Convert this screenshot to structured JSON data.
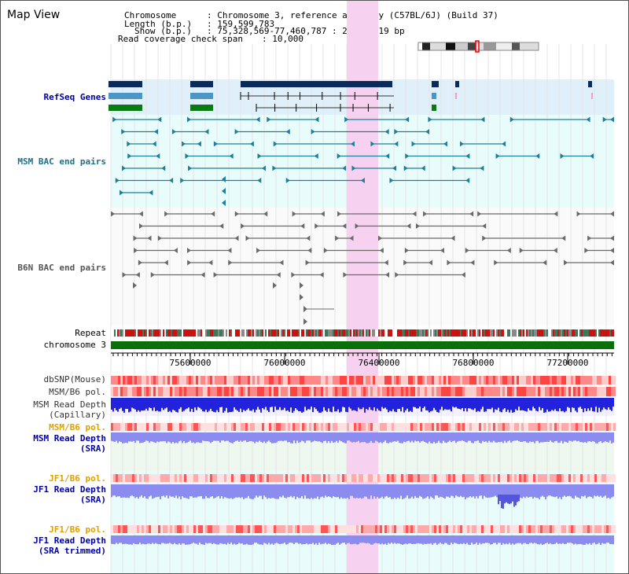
{
  "title": "Map View",
  "header": {
    "chromosome_key": "Chromosome",
    "chromosome_val": ": Chromosome 3, reference assembly (C57BL/6J) (Build 37)",
    "length_key": "Length (b.p.)",
    "length_val": ": 159,599,783",
    "show_key": "Show (b.p.)",
    "show_val": ": 75,328,569-77,460,787 : 2,132,219 bp",
    "coverage_key": "Read coverage check span",
    "coverage_val": ": 10,000"
  },
  "tracks": {
    "refseq": "RefSeq Genes",
    "msm_bac": "MSM BAC end pairs",
    "b6n_bac": "B6N BAC end pairs",
    "repeat": "Repeat",
    "chromosome": "chromosome 3",
    "dbsnp": "dbSNP(Mouse)",
    "msm_b6_pol": "MSM/B6 pol.",
    "msm_depth_cap_1": "MSM Read Depth",
    "msm_depth_cap_2": "(Capillary)",
    "msm_b6_pol2": "MSM/B6 pol.",
    "msm_depth_sra_1": "MSM Read Depth",
    "msm_depth_sra_2": "(SRA)",
    "jf1_b6_pol": "JF1/B6 pol.",
    "jf1_depth_sra_1": "JF1 Read Depth",
    "jf1_depth_sra_2": "(SRA)",
    "jf1_b6_pol2": "JF1/B6 pol.",
    "jf1_depth_trim_1": "JF1 Read Depth",
    "jf1_depth_trim_2": "(SRA trimmed)"
  },
  "axis": {
    "ticks": [
      "75600000",
      "76000000",
      "76400000",
      "76800000",
      "77200000"
    ]
  },
  "colors": {
    "refseq_bg": "#dff0fb",
    "bac_bg": "#e8fdfb",
    "highlight": "#f6d2f0",
    "gene_dark": "#0a2a5c",
    "gene_mid": "#4a96c4",
    "gene_green": "#0a7a14",
    "msm_bac": "#1f7f9a",
    "b6n_bac": "#6a6a6a",
    "chromosome_bar": "#0a700a",
    "depth_blue": "#2222dd",
    "depth_light": "#8c8cf0",
    "label_blue": "#0000aa",
    "label_teal": "#1f6f8a",
    "label_orange": "#e0a000"
  }
}
